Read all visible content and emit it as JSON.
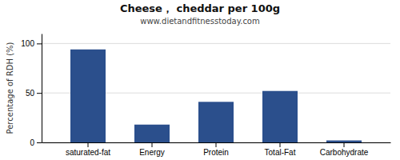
{
  "chart_data": {
    "type": "bar",
    "title": "Cheese， cheddar per 100g",
    "subtitle": "www.dietandfitnesstoday.com",
    "categories": [
      "saturated-fat",
      "Energy",
      "Protein",
      "Total-Fat",
      "Carbohydrate"
    ],
    "values": [
      94,
      18,
      41,
      52,
      2
    ],
    "color": "#2b4f8c",
    "ylabel": "Percentage of RDH (%)",
    "ylim": [
      0,
      110
    ],
    "yticks": [
      0,
      50,
      100
    ],
    "grid": true
  }
}
